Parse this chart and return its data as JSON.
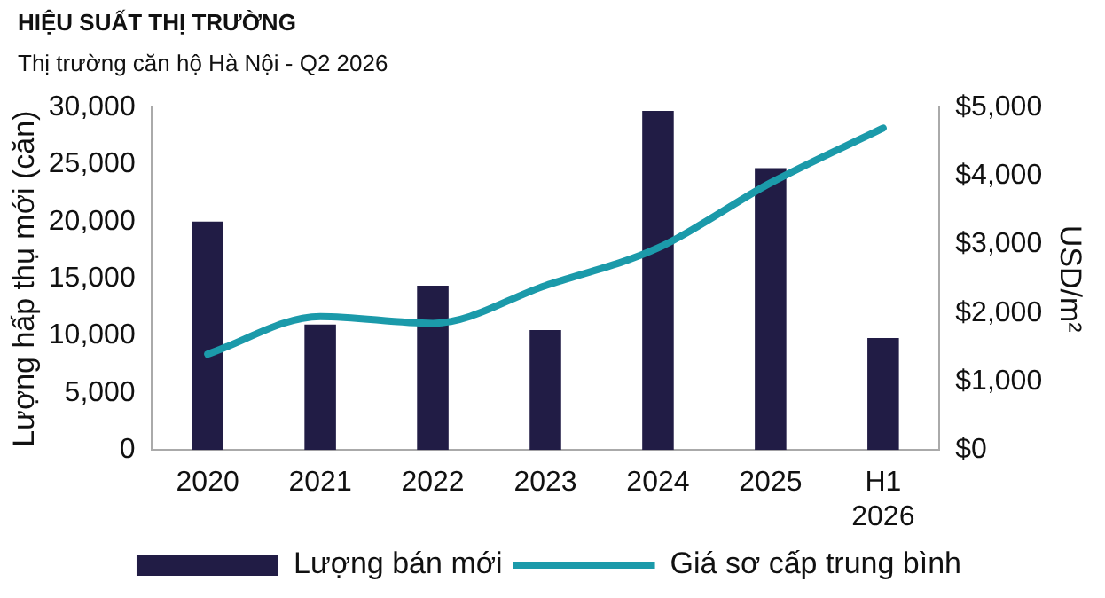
{
  "chart_data": {
    "type": "bar",
    "title": "HIỆU SUẤT THỊ TRƯỜNG",
    "subtitle": "Thị trường căn hộ Hà Nội - Q2 2026",
    "ylabel": "Lượng hấp thụ mới (căn)",
    "y2label": "USD/m²",
    "categories": [
      "2020",
      "2021",
      "2022",
      "2023",
      "2024",
      "2025",
      "H1 2026"
    ],
    "series": [
      {
        "name": "Lượng bán mới",
        "color": "#211c45",
        "values": [
          20000,
          11000,
          14400,
          10500,
          29700,
          24700,
          9800
        ]
      },
      {
        "name": "Giá sơ cấp trung bình",
        "type": "line",
        "axis": "y2",
        "color": "#1b9aaa",
        "values": [
          1400,
          1950,
          1850,
          2400,
          2950,
          3900,
          4700
        ]
      }
    ],
    "ylim": [
      0,
      30000
    ],
    "yticks": [
      {
        "value": 0,
        "label": "0"
      },
      {
        "value": 5000,
        "label": "5,000"
      },
      {
        "value": 10000,
        "label": "10,000"
      },
      {
        "value": 15000,
        "label": "15,000"
      },
      {
        "value": 20000,
        "label": "20,000"
      },
      {
        "value": 25000,
        "label": "25,000"
      },
      {
        "value": 30000,
        "label": "30,000"
      }
    ],
    "y2lim": [
      0,
      5000
    ],
    "y2ticks": [
      {
        "value": 0,
        "label": "$0"
      },
      {
        "value": 1000,
        "label": "$1,000"
      },
      {
        "value": 2000,
        "label": "$2,000"
      },
      {
        "value": 3000,
        "label": "$3,000"
      },
      {
        "value": 4000,
        "label": "$4,000"
      },
      {
        "value": 5000,
        "label": "$5,000"
      }
    ],
    "grid": false,
    "legend": "bottom",
    "marker": "none"
  }
}
